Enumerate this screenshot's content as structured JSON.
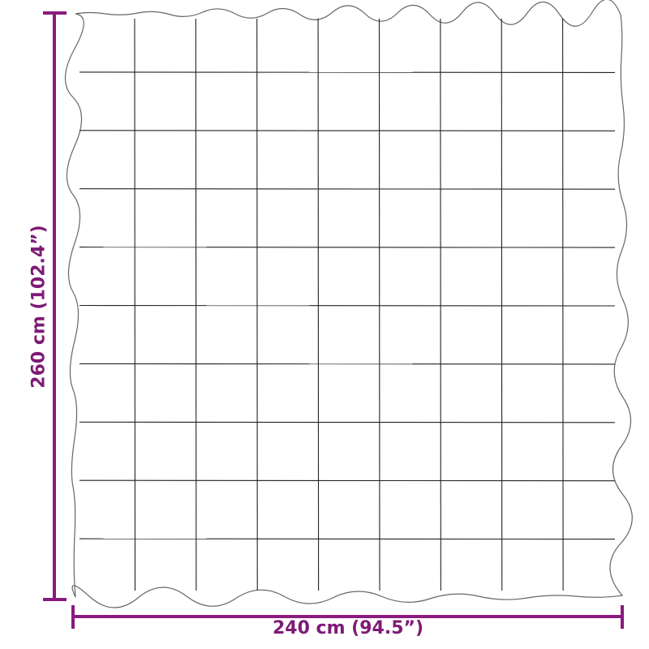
{
  "colors": {
    "dimension": "#8b1a7f",
    "outline": "#555555",
    "stitch": "#222222"
  },
  "blanket": {
    "columns": 9,
    "rows": 10
  },
  "dimensions": {
    "width_label": "240 cm (94.5”)",
    "height_label": "260 cm (102.4”)"
  }
}
